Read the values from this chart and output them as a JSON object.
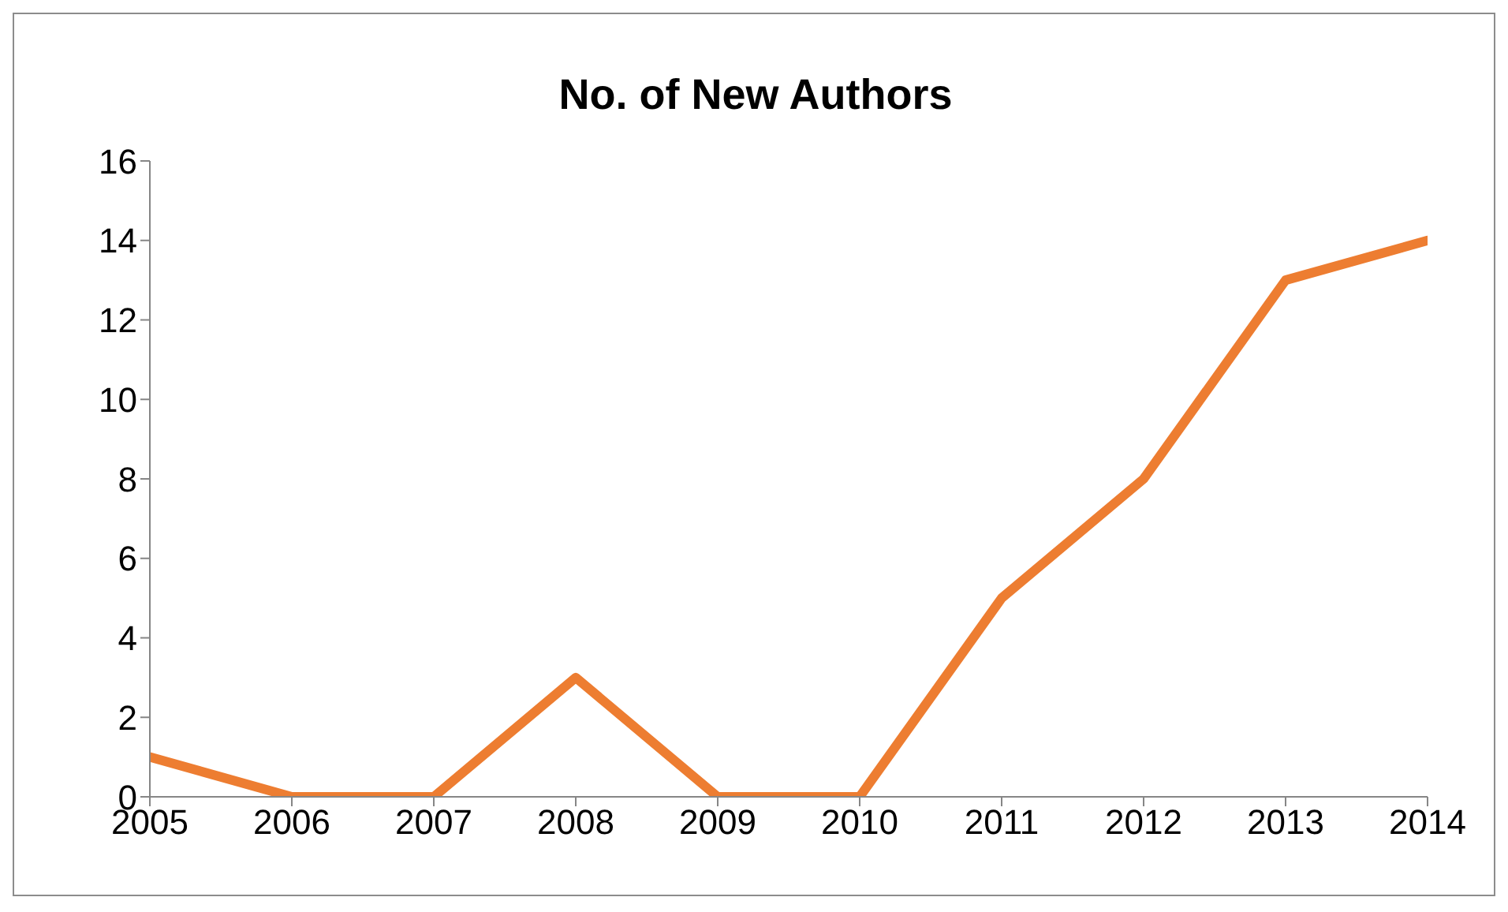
{
  "chart_data": {
    "type": "line",
    "title": "No. of New Authors",
    "x": [
      2005,
      2006,
      2007,
      2008,
      2009,
      2010,
      2011,
      2012,
      2013,
      2014
    ],
    "series": [
      {
        "color": "#ed7d31",
        "values": [
          1,
          0,
          0,
          3,
          0,
          0,
          5,
          8,
          13,
          14
        ]
      }
    ],
    "xlim": [
      2005,
      2014
    ],
    "xticks": [
      2005,
      2006,
      2007,
      2008,
      2009,
      2010,
      2011,
      2012,
      2013,
      2014
    ],
    "ylim": [
      0,
      16
    ],
    "yticks": [
      0,
      2,
      4,
      6,
      8,
      10,
      12,
      14,
      16
    ],
    "grid": false,
    "legend": false,
    "marker": "none",
    "line_style": "solid"
  }
}
